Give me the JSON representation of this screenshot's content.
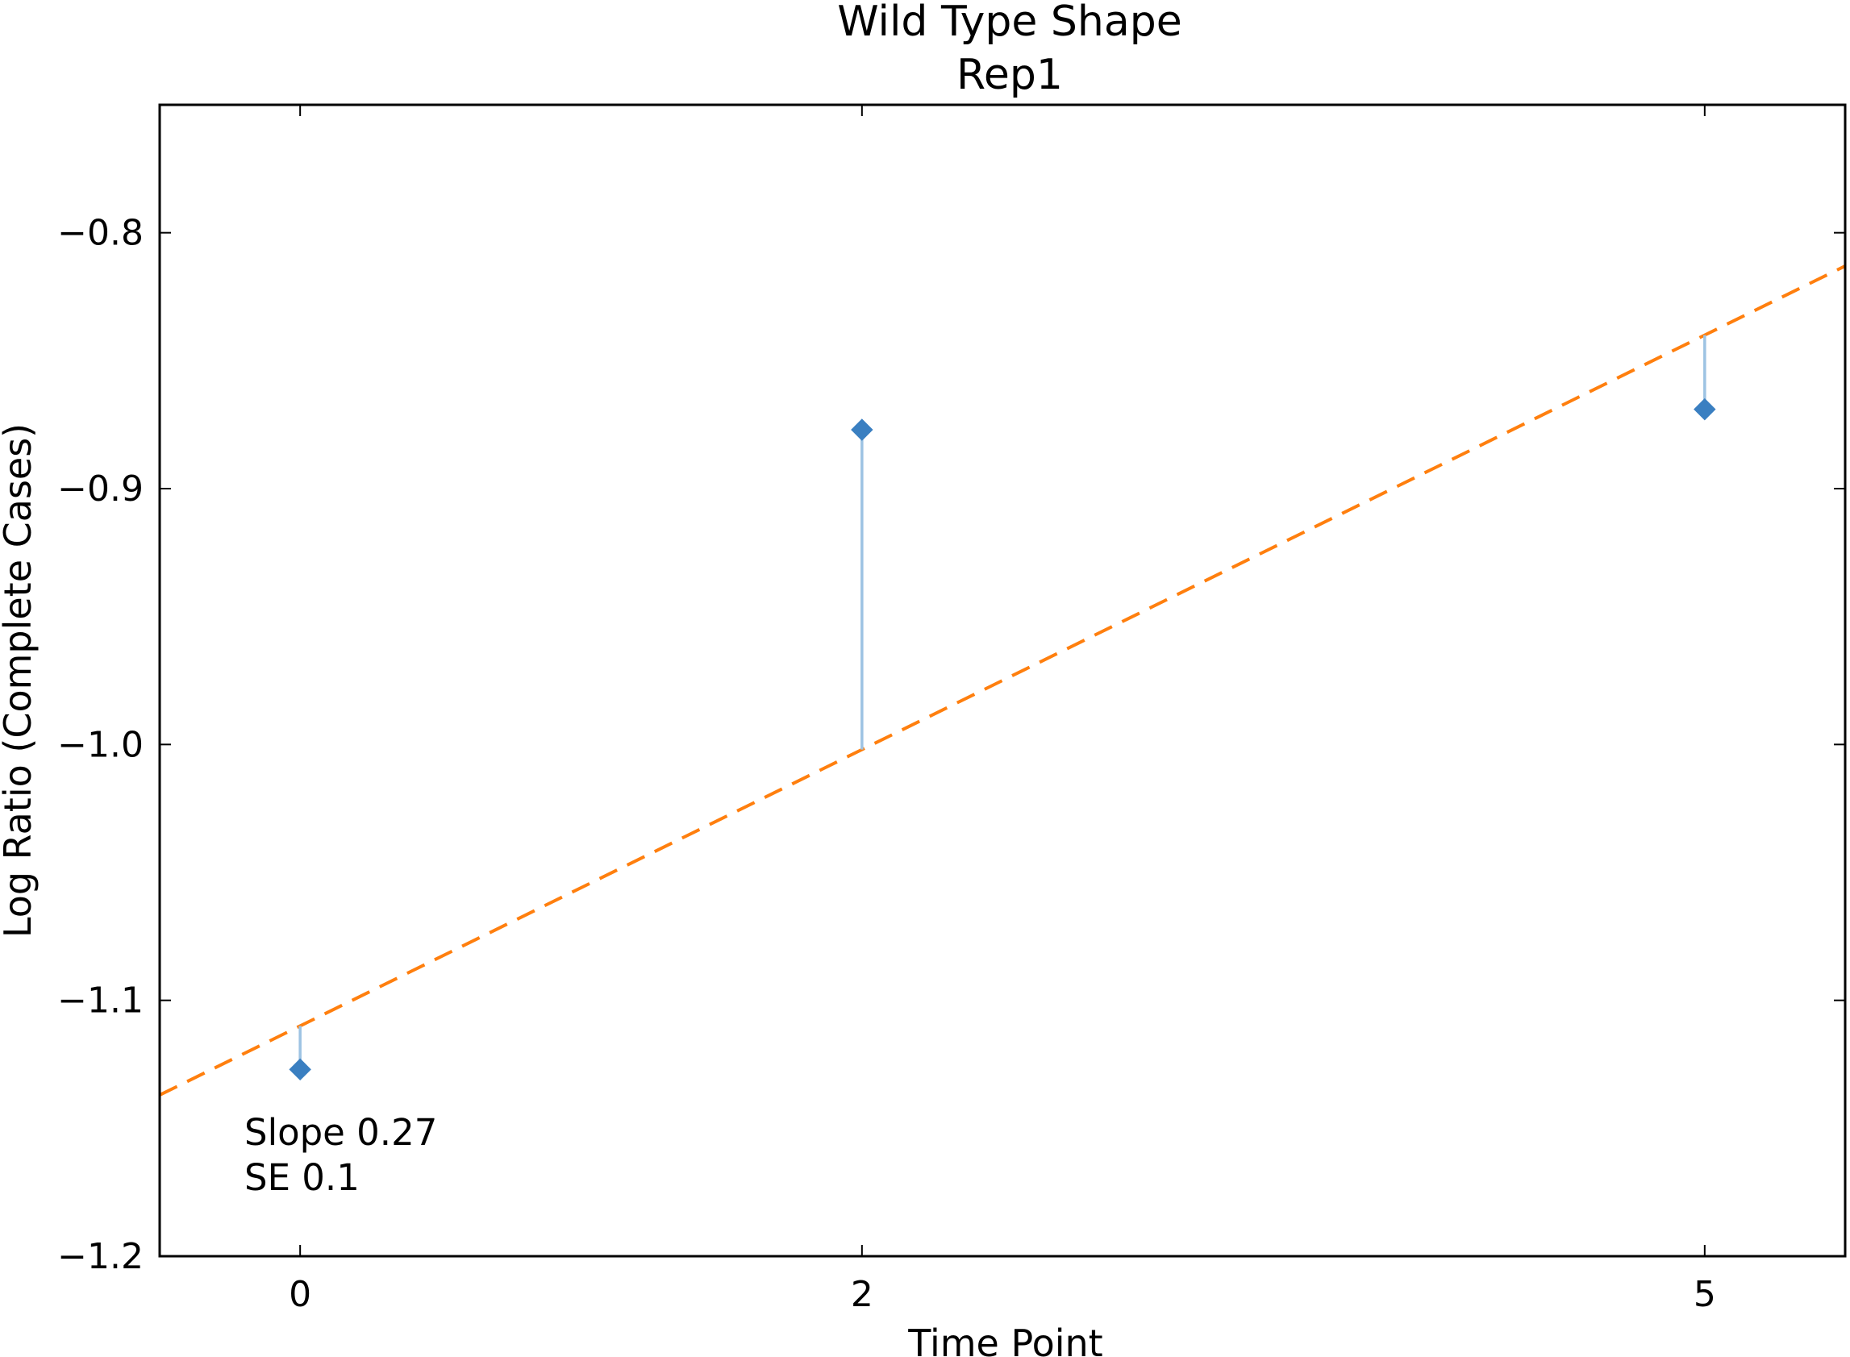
{
  "chart_data": {
    "type": "scatter",
    "title": "Wild Type Shape",
    "subtitle": "Rep1",
    "xlabel": "Time Point",
    "ylabel": "Log Ratio (Complete Cases)",
    "x_ticks": [
      0,
      2,
      5
    ],
    "x_tick_labels": [
      "0",
      "2",
      "5"
    ],
    "xlim": [
      -0.5,
      5.5
    ],
    "y_ticks": [
      -0.8,
      -0.9,
      -1.0,
      -1.1,
      -1.2
    ],
    "y_tick_labels": [
      "−0.8",
      "−0.9",
      "−1.0",
      "−1.1",
      "−1.2"
    ],
    "ylim": [
      -1.2,
      -0.75
    ],
    "grid": false,
    "series": [
      {
        "marker": "diamond",
        "x": [
          0,
          2,
          5
        ],
        "y": [
          -1.127,
          -0.877,
          -0.869
        ]
      }
    ],
    "fit_line": {
      "style": "dashed",
      "slope": 0.054,
      "intercept": -1.11
    },
    "residual_lines": true,
    "annotation": {
      "line1": "Slope 0.27",
      "line2": "SE 0.1"
    },
    "colors": {
      "marker": "#3a7fc1",
      "residual": "#9dc3e3",
      "fit": "#ff7f0e",
      "axes": "#000000"
    }
  }
}
